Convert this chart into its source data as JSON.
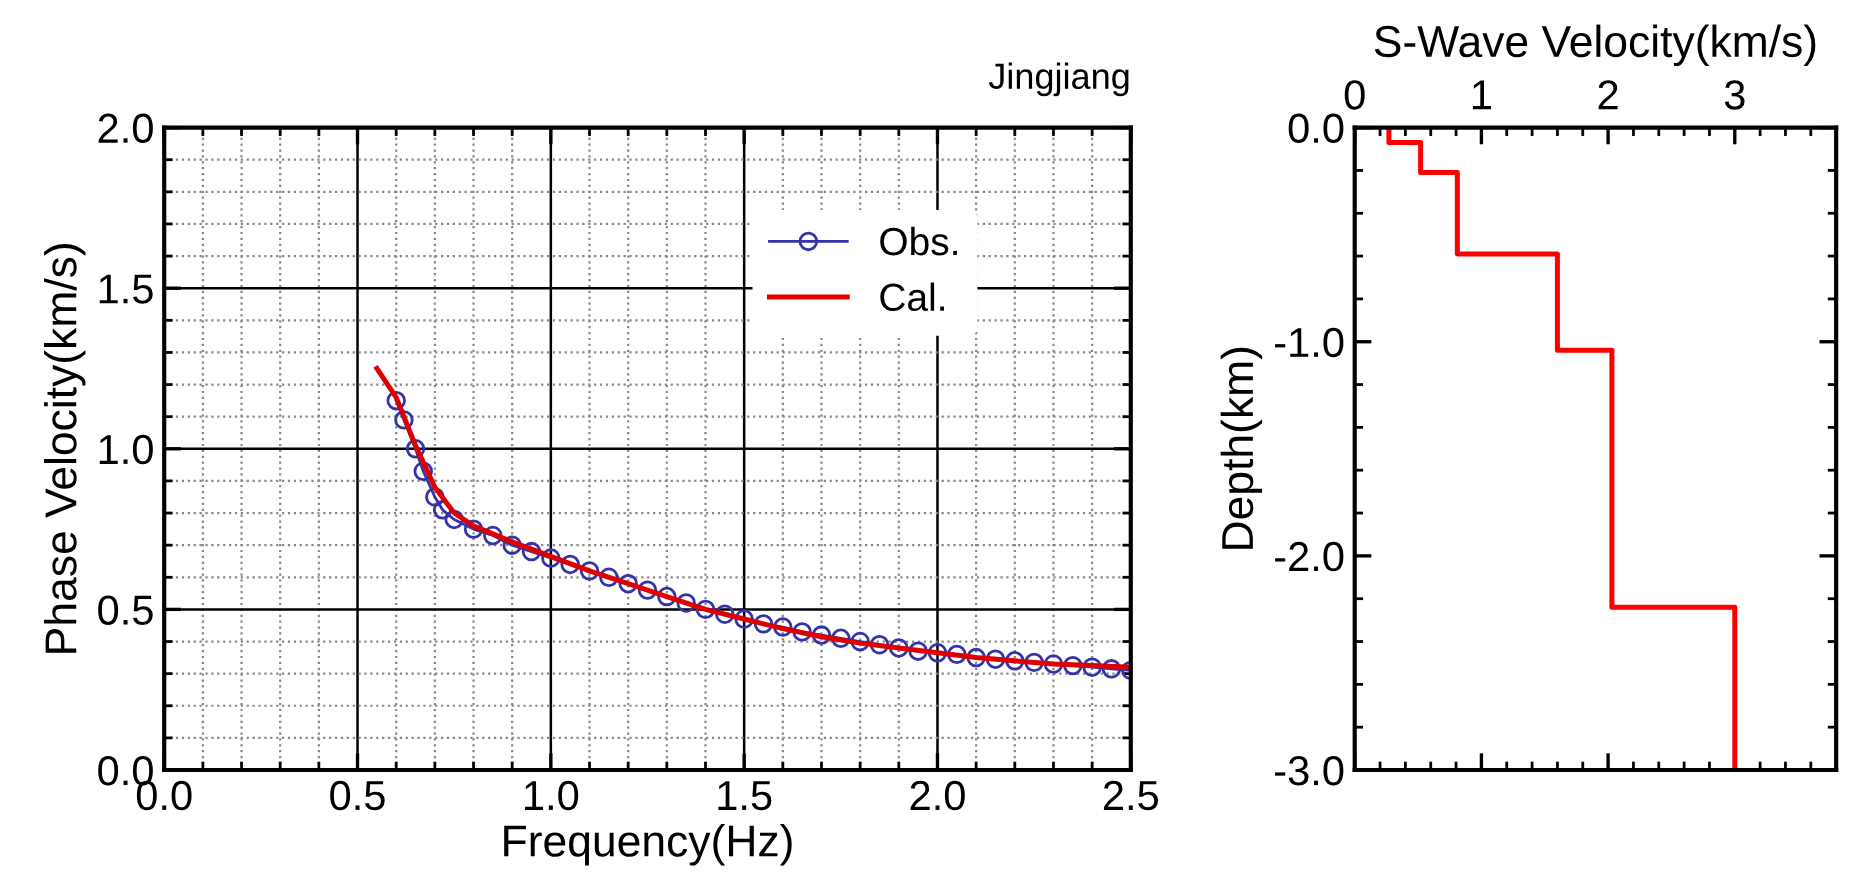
{
  "chart_data": [
    {
      "type": "line",
      "title": "Jingjiang",
      "xlabel": "Frequency(Hz)",
      "ylabel": "Phase Velocity(km/s)",
      "xlim": [
        0,
        2.5
      ],
      "xticks": [
        {
          "value": 0,
          "label": "0.0"
        },
        0.5,
        {
          "value": 1,
          "label": "1.0"
        },
        1.5,
        {
          "value": 2,
          "label": "2.0"
        },
        2.5
      ],
      "ylim": [
        0,
        2
      ],
      "yticks": [
        {
          "value": 0,
          "label": "0.0"
        },
        0.5,
        {
          "value": 1,
          "label": "1.0"
        },
        1.5,
        {
          "value": 2,
          "label": "2.0"
        }
      ],
      "grid": true,
      "legend": "top right",
      "series": [
        {
          "name": "Obs.",
          "color": "#3333aa",
          "marker": "circle",
          "x": [
            0.6,
            0.62,
            0.65,
            0.67,
            0.7,
            0.72,
            0.75,
            0.8,
            0.85,
            0.9,
            0.95,
            1.0,
            1.05,
            1.1,
            1.15,
            1.2,
            1.25,
            1.3,
            1.35,
            1.4,
            1.45,
            1.5,
            1.55,
            1.6,
            1.65,
            1.7,
            1.75,
            1.8,
            1.85,
            1.9,
            1.95,
            2.0,
            2.05,
            2.1,
            2.15,
            2.2,
            2.25,
            2.3,
            2.35,
            2.4,
            2.45,
            2.5
          ],
          "values": [
            1.15,
            1.09,
            1.0,
            0.93,
            0.85,
            0.81,
            0.78,
            0.75,
            0.73,
            0.7,
            0.68,
            0.66,
            0.64,
            0.62,
            0.6,
            0.58,
            0.56,
            0.54,
            0.52,
            0.5,
            0.485,
            0.47,
            0.455,
            0.445,
            0.43,
            0.42,
            0.41,
            0.4,
            0.39,
            0.38,
            0.37,
            0.365,
            0.36,
            0.35,
            0.345,
            0.34,
            0.335,
            0.33,
            0.325,
            0.32,
            0.315,
            0.31
          ]
        },
        {
          "name": "Cal.",
          "color": "#dd0000",
          "marker": "none",
          "x": [
            0.55,
            0.6,
            0.65,
            0.7,
            0.75,
            0.8,
            0.9,
            1.0,
            1.1,
            1.2,
            1.3,
            1.4,
            1.5,
            1.6,
            1.7,
            1.8,
            1.9,
            2.0,
            2.1,
            2.2,
            2.3,
            2.4,
            2.5
          ],
          "values": [
            1.25,
            1.16,
            1.01,
            0.88,
            0.8,
            0.76,
            0.71,
            0.665,
            0.62,
            0.58,
            0.54,
            0.5,
            0.47,
            0.44,
            0.415,
            0.395,
            0.38,
            0.365,
            0.35,
            0.34,
            0.33,
            0.325,
            0.32
          ]
        }
      ]
    },
    {
      "type": "line",
      "xlabel": "S-Wave Velocity(km/s)",
      "ylabel": "Depth(km)",
      "xlim": [
        0,
        3.8
      ],
      "xticks": [
        0,
        1,
        2,
        3
      ],
      "ylim": [
        -3,
        0
      ],
      "yticks": [
        {
          "value": 0,
          "label": "0.0"
        },
        {
          "value": -1,
          "label": "-1.0"
        },
        {
          "value": -2,
          "label": "-2.0"
        },
        {
          "value": -3,
          "label": "-3.0"
        }
      ],
      "grid": false,
      "series": [
        {
          "color": "#ff0000",
          "marker": "none",
          "x": [
            0.27,
            0.27,
            0.52,
            0.52,
            0.81,
            0.81,
            1.6,
            1.6,
            2.03,
            2.03,
            3.0,
            3.0
          ],
          "values": [
            0,
            -0.07,
            -0.07,
            -0.21,
            -0.21,
            -0.59,
            -0.59,
            -1.04,
            -1.04,
            -2.24,
            -2.24,
            -3.0
          ]
        }
      ]
    }
  ]
}
